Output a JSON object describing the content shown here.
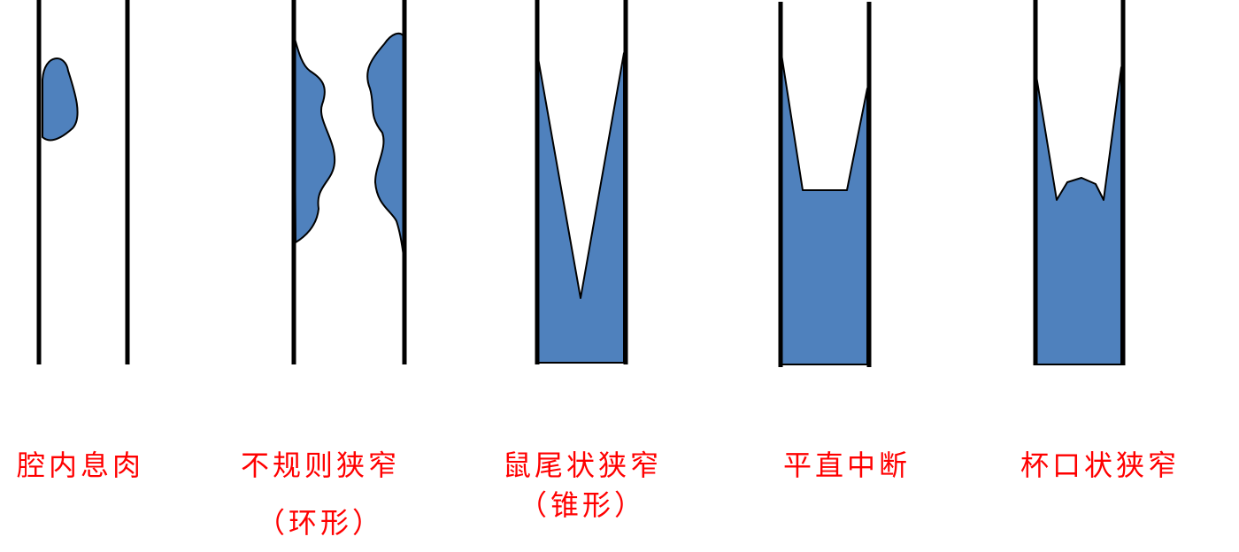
{
  "colors": {
    "fill": "#4f81bd",
    "wall": "#000000",
    "label": "#ff0000"
  },
  "panels": [
    {
      "name": "polyp",
      "label": "腔内息肉",
      "sublabel": ""
    },
    {
      "name": "irregular",
      "label": "不规则狭窄",
      "sublabel": "（环形）"
    },
    {
      "name": "rat-tail",
      "label": "鼠尾状狭窄",
      "sublabel": "（锥形）"
    },
    {
      "name": "flat-cutoff",
      "label": "平直中断",
      "sublabel": ""
    },
    {
      "name": "cup-mouth",
      "label": "杯口状狭窄",
      "sublabel": ""
    }
  ]
}
